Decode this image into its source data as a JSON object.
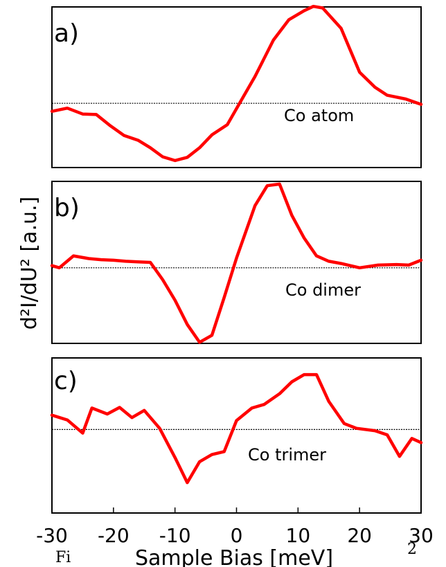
{
  "colors": {
    "series": "#ff0000",
    "frame": "#000000",
    "zero_line": "#000000",
    "background": "#ffffff"
  },
  "caption_fragments": {
    "left": "Fi",
    "right": "2"
  },
  "chart_data": {
    "type": "line",
    "xlabel": "Sample Bias [meV]",
    "ylabel": "d²I/dU² [a.u.]",
    "xlim": [
      -30,
      30
    ],
    "xticks": [
      "-30",
      "-20",
      "-10",
      "0",
      "10",
      "20",
      "30"
    ],
    "grid": false,
    "legend": "none",
    "panels": [
      {
        "label": "a)",
        "series_label": "Co atom",
        "ylim": [
          -1.2,
          1.8
        ],
        "zero": 0,
        "x": [
          -30,
          -27.5,
          -25,
          -22.8,
          -20.5,
          -18.3,
          -16,
          -14,
          -12,
          -10,
          -8,
          -6,
          -4,
          -1.5,
          0.5,
          3,
          6,
          8.5,
          11,
          12.5,
          14,
          17,
          20,
          22.5,
          24.5,
          27.5,
          30
        ],
        "y": [
          -0.15,
          -0.09,
          -0.2,
          -0.21,
          -0.42,
          -0.6,
          -0.69,
          -0.83,
          -1.0,
          -1.07,
          -1.01,
          -0.83,
          -0.59,
          -0.4,
          0.0,
          0.5,
          1.18,
          1.56,
          1.73,
          1.81,
          1.78,
          1.4,
          0.58,
          0.3,
          0.15,
          0.08,
          -0.02
        ]
      },
      {
        "label": "b)",
        "series_label": "Co dimer",
        "ylim": [
          -1.4,
          1.6
        ],
        "zero": 0,
        "x": [
          -30,
          -28.8,
          -26.5,
          -24,
          -22,
          -20,
          -18,
          -16,
          -14,
          -12,
          -10,
          -8,
          -6,
          -4,
          -2,
          0,
          3,
          5,
          7,
          9,
          11,
          13,
          15,
          17,
          20,
          23,
          26,
          28,
          30
        ],
        "y": [
          0.04,
          0.0,
          0.22,
          0.17,
          0.15,
          0.14,
          0.12,
          0.11,
          0.1,
          -0.22,
          -0.6,
          -1.05,
          -1.38,
          -1.25,
          -0.55,
          0.18,
          1.15,
          1.52,
          1.55,
          0.97,
          0.55,
          0.22,
          0.12,
          0.08,
          0.0,
          0.05,
          0.06,
          0.05,
          0.14
        ]
      },
      {
        "label": "c)",
        "series_label": "Co trimer",
        "ylim": [
          -1.4,
          1.2
        ],
        "zero": 0,
        "x": [
          -30,
          -27.5,
          -25,
          -23.5,
          -21,
          -19,
          -17,
          -15,
          -12.5,
          -10,
          -8,
          -6,
          -4,
          -2,
          0,
          2.5,
          4.5,
          7,
          9,
          11,
          13,
          15,
          17.5,
          19.5,
          22.5,
          24.5,
          26.5,
          28.5,
          30
        ],
        "y": [
          0.24,
          0.16,
          -0.06,
          0.36,
          0.26,
          0.37,
          0.2,
          0.32,
          0.02,
          -0.47,
          -0.89,
          -0.54,
          -0.42,
          -0.37,
          0.15,
          0.36,
          0.42,
          0.6,
          0.8,
          0.92,
          0.92,
          0.47,
          0.1,
          0.02,
          -0.02,
          -0.09,
          -0.45,
          -0.15,
          -0.22
        ]
      }
    ]
  }
}
